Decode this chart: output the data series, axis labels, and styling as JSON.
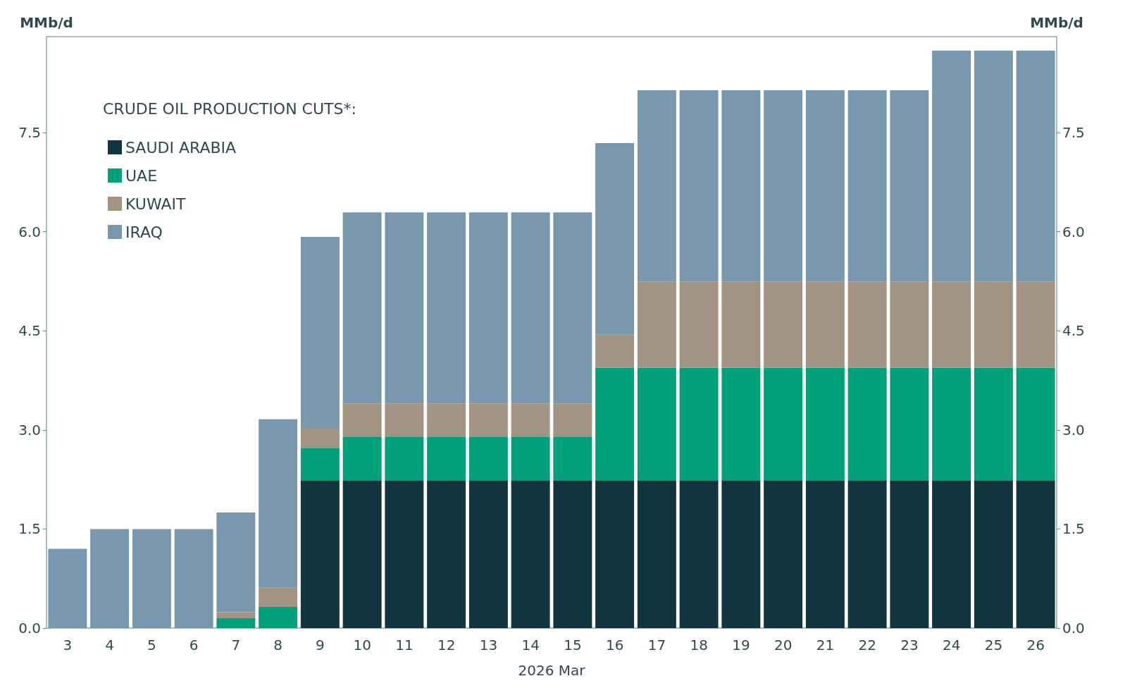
{
  "chart_data": {
    "type": "bar",
    "stacked": true,
    "xlabel": "2026 Mar",
    "ylabel": "MMb/d",
    "y2label": "MMb/d",
    "legend_title": "CRUDE OIL PRODUCTION CUTS*:",
    "legend": "top left",
    "grid": false,
    "categories": [
      "3",
      "4",
      "5",
      "6",
      "7",
      "8",
      "9",
      "10",
      "11",
      "12",
      "13",
      "14",
      "15",
      "16",
      "17",
      "18",
      "19",
      "20",
      "21",
      "22",
      "23",
      "24",
      "25",
      "26"
    ],
    "series": [
      {
        "name": "SAUDI ARABIA",
        "color": "#10353f",
        "values": [
          0,
          0,
          0,
          0,
          0,
          0,
          2.23,
          2.23,
          2.23,
          2.23,
          2.23,
          2.23,
          2.23,
          2.23,
          2.23,
          2.23,
          2.23,
          2.23,
          2.23,
          2.23,
          2.23,
          2.23,
          2.23,
          2.23
        ]
      },
      {
        "name": "UAE",
        "color": "#00a07a",
        "values": [
          0,
          0,
          0,
          0,
          0.15,
          0.32,
          0.49,
          0.66,
          0.66,
          0.66,
          0.66,
          0.66,
          0.66,
          1.71,
          1.71,
          1.71,
          1.71,
          1.71,
          1.71,
          1.71,
          1.71,
          1.71,
          1.71,
          1.71
        ]
      },
      {
        "name": "KUWAIT",
        "color": "#a39382",
        "values": [
          0,
          0,
          0,
          0,
          0.09,
          0.29,
          0.31,
          0.51,
          0.51,
          0.51,
          0.51,
          0.51,
          0.51,
          0.5,
          1.3,
          1.3,
          1.3,
          1.3,
          1.3,
          1.3,
          1.3,
          1.3,
          1.3,
          1.3
        ]
      },
      {
        "name": "IRAQ",
        "color": "#7a98ad",
        "values": [
          1.2,
          1.5,
          1.5,
          1.5,
          1.51,
          2.55,
          2.89,
          2.89,
          2.89,
          2.89,
          2.89,
          2.89,
          2.89,
          2.9,
          2.9,
          2.9,
          2.9,
          2.9,
          2.9,
          2.9,
          2.9,
          3.5,
          3.5,
          3.5
        ]
      }
    ],
    "ylim": [
      0,
      8.95
    ],
    "yticks": [
      {
        "value": 0,
        "label": "0.0"
      },
      1.5,
      {
        "value": 3,
        "label": "3.0"
      },
      4.5,
      {
        "value": 6,
        "label": "6.0"
      },
      7.5
    ],
    "y2lim": [
      0,
      8.95
    ],
    "y2ticks": [
      {
        "value": 0,
        "label": "0.0"
      },
      1.5,
      {
        "value": 3,
        "label": "3.0"
      },
      4.5,
      {
        "value": 6,
        "label": "6.0"
      },
      7.5
    ]
  }
}
